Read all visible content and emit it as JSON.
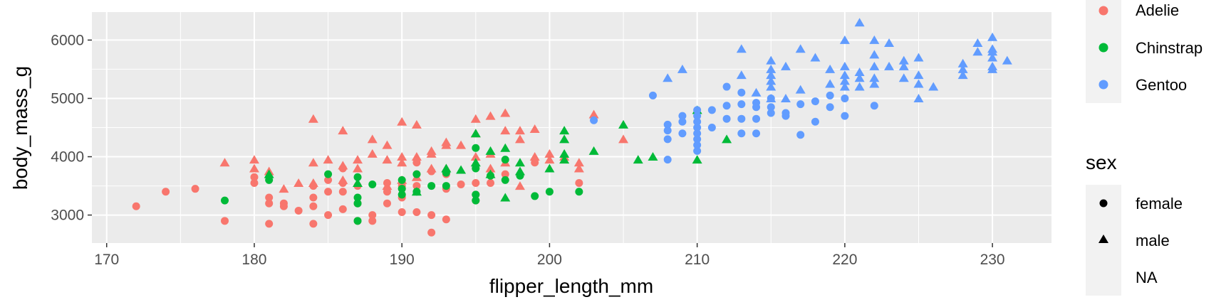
{
  "chart_data": {
    "type": "scatter",
    "title": "",
    "xlabel": "flipper_length_mm",
    "ylabel": "body_mass_g",
    "xlim": [
      169,
      234
    ],
    "ylim": [
      2520,
      6480
    ],
    "xticks": [
      170,
      180,
      190,
      200,
      210,
      220,
      230
    ],
    "yticks": [
      3000,
      4000,
      5000,
      6000
    ],
    "grid": true,
    "legend_position": "right",
    "colors": {
      "Adelie": "#F8766D",
      "Chinstrap": "#00BA38",
      "Gentoo": "#619CFF"
    },
    "legend_species": {
      "title": "",
      "entries": [
        "Adelie",
        "Chinstrap",
        "Gentoo"
      ]
    },
    "legend_sex": {
      "title": "sex",
      "entries": [
        "female",
        "male",
        "NA"
      ]
    },
    "series": [
      {
        "name": "Adelie",
        "sex": "female",
        "points": [
          [
            172,
            3150
          ],
          [
            174,
            3400
          ],
          [
            176,
            3450
          ],
          [
            178,
            2900
          ],
          [
            180,
            3550
          ],
          [
            180,
            3650
          ],
          [
            181,
            2850
          ],
          [
            181,
            3200
          ],
          [
            181,
            3300
          ],
          [
            182,
            3200
          ],
          [
            182,
            3150
          ],
          [
            183,
            3075
          ],
          [
            184,
            2850
          ],
          [
            184,
            3150
          ],
          [
            184,
            3300
          ],
          [
            184,
            3500
          ],
          [
            185,
            3000
          ],
          [
            185,
            3400
          ],
          [
            185,
            3600
          ],
          [
            186,
            3100
          ],
          [
            186,
            3400
          ],
          [
            186,
            3550
          ],
          [
            186,
            3800
          ],
          [
            187,
            2900
          ],
          [
            187,
            3200
          ],
          [
            187,
            3500
          ],
          [
            188,
            2900
          ],
          [
            188,
            3000
          ],
          [
            189,
            3200
          ],
          [
            189,
            3400
          ],
          [
            189,
            3550
          ],
          [
            190,
            3050
          ],
          [
            190,
            3300
          ],
          [
            190,
            3450
          ],
          [
            190,
            3500
          ],
          [
            191,
            3050
          ],
          [
            191,
            3500
          ],
          [
            191,
            3700
          ],
          [
            191,
            3900
          ],
          [
            192,
            2700
          ],
          [
            192,
            3000
          ],
          [
            192,
            3750
          ],
          [
            193,
            2925
          ],
          [
            193,
            3450
          ],
          [
            193,
            3700
          ],
          [
            194,
            3525
          ],
          [
            195,
            3250
          ],
          [
            195,
            3350
          ],
          [
            195,
            3550
          ],
          [
            196,
            3550
          ],
          [
            197,
            3700
          ],
          [
            199,
            3900
          ],
          [
            202,
            3550
          ]
        ]
      },
      {
        "name": "Adelie",
        "sex": "male",
        "points": [
          [
            178,
            3900
          ],
          [
            180,
            3800
          ],
          [
            180,
            3950
          ],
          [
            181,
            3750
          ],
          [
            182,
            3450
          ],
          [
            183,
            3550
          ],
          [
            184,
            3550
          ],
          [
            184,
            3900
          ],
          [
            184,
            4650
          ],
          [
            185,
            3950
          ],
          [
            186,
            3600
          ],
          [
            186,
            3850
          ],
          [
            186,
            4450
          ],
          [
            187,
            3800
          ],
          [
            187,
            3950
          ],
          [
            188,
            4050
          ],
          [
            188,
            4300
          ],
          [
            189,
            3500
          ],
          [
            189,
            3950
          ],
          [
            189,
            4200
          ],
          [
            190,
            3600
          ],
          [
            190,
            3900
          ],
          [
            190,
            4000
          ],
          [
            190,
            4600
          ],
          [
            191,
            3650
          ],
          [
            191,
            4000
          ],
          [
            191,
            4550
          ],
          [
            192,
            3800
          ],
          [
            192,
            4050
          ],
          [
            192,
            4100
          ],
          [
            193,
            3800
          ],
          [
            193,
            4200
          ],
          [
            193,
            4250
          ],
          [
            194,
            4200
          ],
          [
            195,
            4000
          ],
          [
            195,
            4400
          ],
          [
            195,
            4650
          ],
          [
            196,
            3800
          ],
          [
            196,
            4050
          ],
          [
            196,
            4700
          ],
          [
            197,
            3900
          ],
          [
            197,
            4450
          ],
          [
            197,
            4750
          ],
          [
            198,
            3500
          ],
          [
            198,
            4300
          ],
          [
            198,
            4450
          ],
          [
            199,
            4000
          ],
          [
            199,
            4475
          ],
          [
            200,
            3950
          ],
          [
            200,
            4050
          ],
          [
            201,
            4000
          ],
          [
            202,
            3800
          ],
          [
            202,
            3900
          ],
          [
            203,
            4725
          ],
          [
            205,
            4300
          ]
        ]
      },
      {
        "name": "Chinstrap",
        "sex": "female",
        "points": [
          [
            178,
            3250
          ],
          [
            181,
            3600
          ],
          [
            185,
            3700
          ],
          [
            187,
            2900
          ],
          [
            187,
            3200
          ],
          [
            187,
            3300
          ],
          [
            187,
            3650
          ],
          [
            188,
            3525
          ],
          [
            190,
            3350
          ],
          [
            190,
            3450
          ],
          [
            190,
            3600
          ],
          [
            191,
            3400
          ],
          [
            191,
            3700
          ],
          [
            192,
            3500
          ],
          [
            193,
            3500
          ],
          [
            193,
            3725
          ],
          [
            195,
            3250
          ],
          [
            195,
            3350
          ],
          [
            195,
            3800
          ],
          [
            195,
            4150
          ],
          [
            196,
            3675
          ],
          [
            197,
            3600
          ],
          [
            197,
            3950
          ],
          [
            198,
            3675
          ],
          [
            199,
            3325
          ],
          [
            200,
            3400
          ],
          [
            202,
            3400
          ]
        ]
      },
      {
        "name": "Chinstrap",
        "sex": "male",
        "points": [
          [
            181,
            3700
          ],
          [
            187,
            3550
          ],
          [
            191,
            3400
          ],
          [
            193,
            3800
          ],
          [
            194,
            3775
          ],
          [
            195,
            3900
          ],
          [
            195,
            4400
          ],
          [
            196,
            3700
          ],
          [
            196,
            4100
          ],
          [
            197,
            3300
          ],
          [
            197,
            4150
          ],
          [
            198,
            3750
          ],
          [
            198,
            3900
          ],
          [
            200,
            3800
          ],
          [
            201,
            3950
          ],
          [
            201,
            4050
          ],
          [
            201,
            4300
          ],
          [
            201,
            4450
          ],
          [
            203,
            4100
          ],
          [
            205,
            4550
          ],
          [
            206,
            3950
          ],
          [
            207,
            4000
          ],
          [
            210,
            3950
          ],
          [
            210,
            4800
          ],
          [
            212,
            4300
          ]
        ]
      },
      {
        "name": "Gentoo",
        "sex": "female",
        "points": [
          [
            203,
            4625
          ],
          [
            207,
            5050
          ],
          [
            208,
            3950
          ],
          [
            208,
            4300
          ],
          [
            208,
            4450
          ],
          [
            208,
            4550
          ],
          [
            209,
            4400
          ],
          [
            209,
            4600
          ],
          [
            209,
            4700
          ],
          [
            210,
            4100
          ],
          [
            210,
            4200
          ],
          [
            210,
            4300
          ],
          [
            210,
            4400
          ],
          [
            210,
            4500
          ],
          [
            210,
            4600
          ],
          [
            210,
            4700
          ],
          [
            210,
            4800
          ],
          [
            211,
            4500
          ],
          [
            211,
            4800
          ],
          [
            212,
            4650
          ],
          [
            212,
            4875
          ],
          [
            212,
            5200
          ],
          [
            213,
            4400
          ],
          [
            213,
            4650
          ],
          [
            213,
            4900
          ],
          [
            213,
            5100
          ],
          [
            214,
            4400
          ],
          [
            214,
            4650
          ],
          [
            214,
            4850
          ],
          [
            214,
            4925
          ],
          [
            215,
            4750
          ],
          [
            215,
            4850
          ],
          [
            215,
            5000
          ],
          [
            216,
            4700
          ],
          [
            216,
            4750
          ],
          [
            217,
            4375
          ],
          [
            217,
            4900
          ],
          [
            218,
            4600
          ],
          [
            218,
            4950
          ],
          [
            219,
            4850
          ],
          [
            219,
            5050
          ],
          [
            220,
            4700
          ],
          [
            220,
            5000
          ],
          [
            222,
            4875
          ]
        ]
      },
      {
        "name": "Gentoo",
        "sex": "male",
        "points": [
          [
            208,
            5350
          ],
          [
            209,
            5500
          ],
          [
            213,
            5400
          ],
          [
            213,
            5850
          ],
          [
            214,
            5100
          ],
          [
            215,
            5000
          ],
          [
            215,
            5200
          ],
          [
            215,
            5300
          ],
          [
            215,
            5400
          ],
          [
            215,
            5500
          ],
          [
            215,
            5650
          ],
          [
            216,
            5000
          ],
          [
            216,
            5550
          ],
          [
            217,
            5150
          ],
          [
            217,
            5850
          ],
          [
            218,
            5700
          ],
          [
            219,
            5250
          ],
          [
            219,
            5500
          ],
          [
            220,
            5200
          ],
          [
            220,
            5300
          ],
          [
            220,
            5400
          ],
          [
            220,
            5550
          ],
          [
            220,
            6000
          ],
          [
            221,
            5200
          ],
          [
            221,
            5350
          ],
          [
            221,
            5450
          ],
          [
            221,
            6300
          ],
          [
            222,
            5250
          ],
          [
            222,
            5350
          ],
          [
            222,
            5550
          ],
          [
            222,
            5750
          ],
          [
            222,
            6000
          ],
          [
            223,
            5550
          ],
          [
            223,
            5950
          ],
          [
            224,
            5350
          ],
          [
            224,
            5550
          ],
          [
            224,
            5650
          ],
          [
            225,
            5000
          ],
          [
            225,
            5250
          ],
          [
            225,
            5400
          ],
          [
            225,
            5700
          ],
          [
            226,
            5200
          ],
          [
            228,
            5400
          ],
          [
            228,
            5500
          ],
          [
            228,
            5600
          ],
          [
            229,
            5800
          ],
          [
            229,
            5950
          ],
          [
            230,
            5500
          ],
          [
            230,
            5550
          ],
          [
            230,
            5700
          ],
          [
            230,
            5800
          ],
          [
            230,
            5850
          ],
          [
            230,
            6050
          ],
          [
            231,
            5650
          ]
        ]
      }
    ]
  }
}
